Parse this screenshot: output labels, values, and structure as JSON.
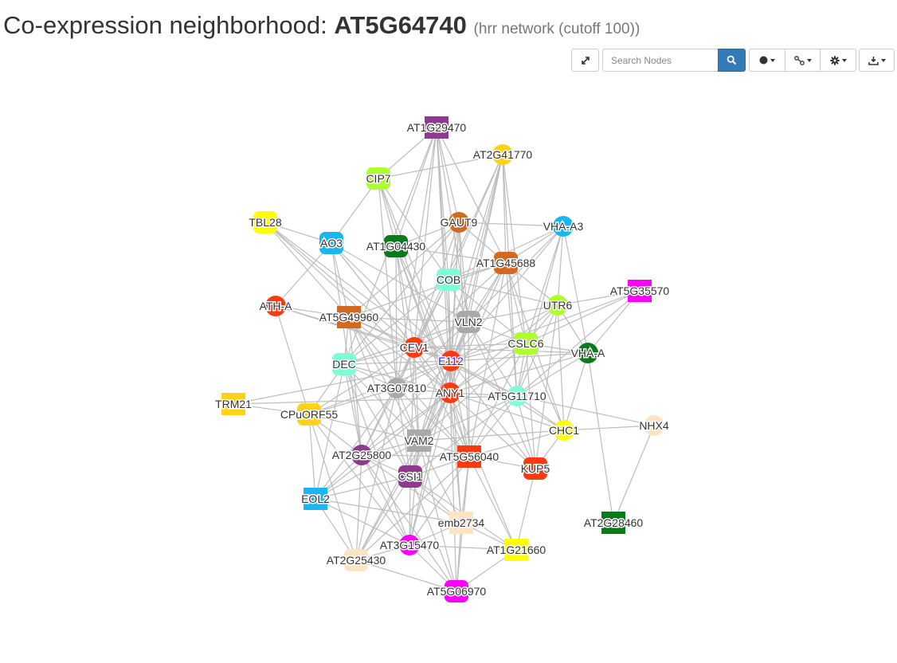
{
  "header": {
    "title_prefix": "Co-expression neighborhood: ",
    "gene": "AT5G64740",
    "subtitle": "(hrr network (cutoff 100))"
  },
  "toolbar": {
    "search_placeholder": "Search Nodes",
    "icons": [
      "expand-icon",
      "search-icon",
      "node-style-icon",
      "edge-style-icon",
      "settings-icon",
      "download-icon"
    ]
  },
  "network": {
    "focus_node": "E112",
    "nodes": [
      {
        "id": "AT1G29470",
        "shape": "rect",
        "color": "#8e3a8e"
      },
      {
        "id": "AT2G41770",
        "shape": "circle",
        "color": "#ffd21a"
      },
      {
        "id": "CIP7",
        "shape": "round",
        "color": "#adff2f"
      },
      {
        "id": "TBL28",
        "shape": "round",
        "color": "#ffff00"
      },
      {
        "id": "AO3",
        "shape": "round",
        "color": "#1ab6f0"
      },
      {
        "id": "AT1G04430",
        "shape": "round",
        "color": "#0a7a1a"
      },
      {
        "id": "GAUT9",
        "shape": "circle",
        "color": "#d2691e"
      },
      {
        "id": "VHA-A3",
        "shape": "circle",
        "color": "#1ab6f0"
      },
      {
        "id": "AT1G45688",
        "shape": "round",
        "color": "#d2691e"
      },
      {
        "id": "COB",
        "shape": "round",
        "color": "#7fffd4"
      },
      {
        "id": "AT5G35570",
        "shape": "rect",
        "color": "#ff00ff"
      },
      {
        "id": "ATH-A",
        "shape": "circle",
        "color": "#ff3a10"
      },
      {
        "id": "UTR6",
        "shape": "circle",
        "color": "#adff2f"
      },
      {
        "id": "AT5G49960",
        "shape": "rect",
        "color": "#d2691e"
      },
      {
        "id": "VLN2",
        "shape": "round",
        "color": "#a9a9a9"
      },
      {
        "id": "CSLC6",
        "shape": "round",
        "color": "#adff2f"
      },
      {
        "id": "CEV1",
        "shape": "circle",
        "color": "#ff3a10"
      },
      {
        "id": "VHA-A",
        "shape": "circle",
        "color": "#0a7a1a"
      },
      {
        "id": "DEC",
        "shape": "round",
        "color": "#7fffd4"
      },
      {
        "id": "E112",
        "shape": "circle",
        "color": "#ff3a10"
      },
      {
        "id": "AT3G07810",
        "shape": "circle",
        "color": "#a9a9a9"
      },
      {
        "id": "ANY1",
        "shape": "circle",
        "color": "#ff3a10"
      },
      {
        "id": "AT5G11710",
        "shape": "circle",
        "color": "#7fffd4"
      },
      {
        "id": "TRM21",
        "shape": "rect",
        "color": "#ffd21a"
      },
      {
        "id": "CPuORF55",
        "shape": "round",
        "color": "#ffd21a"
      },
      {
        "id": "NHX4",
        "shape": "circle",
        "color": "#ffe4c4"
      },
      {
        "id": "CHC1",
        "shape": "circle",
        "color": "#ffff00"
      },
      {
        "id": "VAM2",
        "shape": "rect",
        "color": "#a9a9a9"
      },
      {
        "id": "AT2G25800",
        "shape": "circle",
        "color": "#8e3a8e"
      },
      {
        "id": "AT5G56040",
        "shape": "rect",
        "color": "#ff3a10"
      },
      {
        "id": "KUP5",
        "shape": "round",
        "color": "#ff3a10"
      },
      {
        "id": "CSI1",
        "shape": "round",
        "color": "#8e3a8e"
      },
      {
        "id": "EOL2",
        "shape": "rect",
        "color": "#1ab6f0"
      },
      {
        "id": "emb2734",
        "shape": "rect",
        "color": "#ffe4c4"
      },
      {
        "id": "AT2G28460",
        "shape": "rect",
        "color": "#0a7a1a"
      },
      {
        "id": "AT3G15470",
        "shape": "circle",
        "color": "#ff00ff"
      },
      {
        "id": "AT1G21660",
        "shape": "rect",
        "color": "#ffff00"
      },
      {
        "id": "AT2G25430",
        "shape": "round",
        "color": "#ffe4c4"
      },
      {
        "id": "AT5G06970",
        "shape": "round",
        "color": "#ff00ff"
      }
    ]
  }
}
